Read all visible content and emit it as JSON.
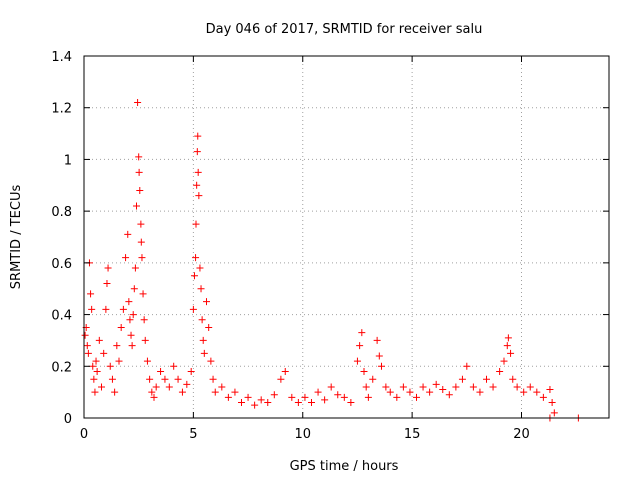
{
  "chart_data": {
    "type": "scatter",
    "title": "Day 046 of 2017, SRMTID for receiver salu",
    "xlabel": "GPS time / hours",
    "ylabel": "SRMTID / TECUs",
    "xlim": [
      0,
      24
    ],
    "ylim": [
      0,
      1.4
    ],
    "x_ticks": [
      0,
      5,
      10,
      15,
      20
    ],
    "x_tick_labels": [
      "0",
      "5",
      "10",
      "15",
      "20"
    ],
    "y_ticks": [
      0,
      0.2,
      0.4,
      0.6,
      0.8,
      1.0,
      1.2,
      1.4
    ],
    "y_tick_labels": [
      "0",
      "0.2",
      "0.4",
      "0.6",
      "0.8",
      "1",
      "1.2",
      "1.4"
    ],
    "grid": true,
    "marker": "+",
    "color": "#ff0000",
    "series": [
      {
        "name": "SRMTID",
        "points": [
          [
            0.05,
            0.32
          ],
          [
            0.1,
            0.35
          ],
          [
            0.15,
            0.28
          ],
          [
            0.2,
            0.25
          ],
          [
            0.25,
            0.6
          ],
          [
            0.3,
            0.48
          ],
          [
            0.35,
            0.42
          ],
          [
            0.4,
            0.2
          ],
          [
            0.45,
            0.15
          ],
          [
            0.5,
            0.1
          ],
          [
            0.55,
            0.22
          ],
          [
            0.6,
            0.18
          ],
          [
            0.7,
            0.3
          ],
          [
            0.8,
            0.12
          ],
          [
            0.9,
            0.25
          ],
          [
            1.0,
            0.42
          ],
          [
            1.05,
            0.52
          ],
          [
            1.1,
            0.58
          ],
          [
            1.2,
            0.2
          ],
          [
            1.3,
            0.15
          ],
          [
            1.4,
            0.1
          ],
          [
            1.5,
            0.28
          ],
          [
            1.6,
            0.22
          ],
          [
            1.7,
            0.35
          ],
          [
            1.8,
            0.42
          ],
          [
            1.9,
            0.62
          ],
          [
            2.0,
            0.71
          ],
          [
            2.05,
            0.45
          ],
          [
            2.1,
            0.38
          ],
          [
            2.15,
            0.32
          ],
          [
            2.2,
            0.28
          ],
          [
            2.25,
            0.4
          ],
          [
            2.3,
            0.5
          ],
          [
            2.35,
            0.58
          ],
          [
            2.4,
            0.82
          ],
          [
            2.45,
            1.22
          ],
          [
            2.5,
            1.01
          ],
          [
            2.52,
            0.95
          ],
          [
            2.55,
            0.88
          ],
          [
            2.6,
            0.75
          ],
          [
            2.62,
            0.68
          ],
          [
            2.65,
            0.62
          ],
          [
            2.7,
            0.48
          ],
          [
            2.75,
            0.38
          ],
          [
            2.8,
            0.3
          ],
          [
            2.9,
            0.22
          ],
          [
            3.0,
            0.15
          ],
          [
            3.1,
            0.1
          ],
          [
            3.2,
            0.08
          ],
          [
            3.3,
            0.12
          ],
          [
            3.5,
            0.18
          ],
          [
            3.7,
            0.15
          ],
          [
            3.9,
            0.12
          ],
          [
            4.1,
            0.2
          ],
          [
            4.3,
            0.15
          ],
          [
            4.5,
            0.1
          ],
          [
            4.7,
            0.13
          ],
          [
            4.9,
            0.18
          ],
          [
            5.0,
            0.42
          ],
          [
            5.05,
            0.55
          ],
          [
            5.1,
            0.62
          ],
          [
            5.12,
            0.75
          ],
          [
            5.15,
            0.9
          ],
          [
            5.18,
            1.03
          ],
          [
            5.2,
            1.09
          ],
          [
            5.22,
            0.95
          ],
          [
            5.25,
            0.86
          ],
          [
            5.3,
            0.58
          ],
          [
            5.35,
            0.5
          ],
          [
            5.4,
            0.38
          ],
          [
            5.45,
            0.3
          ],
          [
            5.5,
            0.25
          ],
          [
            5.6,
            0.45
          ],
          [
            5.7,
            0.35
          ],
          [
            5.8,
            0.22
          ],
          [
            5.9,
            0.15
          ],
          [
            6.0,
            0.1
          ],
          [
            6.3,
            0.12
          ],
          [
            6.6,
            0.08
          ],
          [
            6.9,
            0.1
          ],
          [
            7.2,
            0.06
          ],
          [
            7.5,
            0.08
          ],
          [
            7.8,
            0.05
          ],
          [
            8.1,
            0.07
          ],
          [
            8.4,
            0.06
          ],
          [
            8.7,
            0.09
          ],
          [
            9.0,
            0.15
          ],
          [
            9.2,
            0.18
          ],
          [
            9.5,
            0.08
          ],
          [
            9.8,
            0.06
          ],
          [
            10.1,
            0.08
          ],
          [
            10.4,
            0.06
          ],
          [
            10.7,
            0.1
          ],
          [
            11.0,
            0.07
          ],
          [
            11.3,
            0.12
          ],
          [
            11.6,
            0.09
          ],
          [
            11.9,
            0.08
          ],
          [
            12.2,
            0.06
          ],
          [
            12.5,
            0.22
          ],
          [
            12.6,
            0.28
          ],
          [
            12.7,
            0.33
          ],
          [
            12.8,
            0.18
          ],
          [
            12.9,
            0.12
          ],
          [
            13.0,
            0.08
          ],
          [
            13.2,
            0.15
          ],
          [
            13.4,
            0.3
          ],
          [
            13.5,
            0.24
          ],
          [
            13.6,
            0.2
          ],
          [
            13.8,
            0.12
          ],
          [
            14.0,
            0.1
          ],
          [
            14.3,
            0.08
          ],
          [
            14.6,
            0.12
          ],
          [
            14.9,
            0.1
          ],
          [
            15.2,
            0.08
          ],
          [
            15.5,
            0.12
          ],
          [
            15.8,
            0.1
          ],
          [
            16.1,
            0.13
          ],
          [
            16.4,
            0.11
          ],
          [
            16.7,
            0.09
          ],
          [
            17.0,
            0.12
          ],
          [
            17.3,
            0.15
          ],
          [
            17.5,
            0.2
          ],
          [
            17.8,
            0.12
          ],
          [
            18.1,
            0.1
          ],
          [
            18.4,
            0.15
          ],
          [
            18.7,
            0.12
          ],
          [
            19.0,
            0.18
          ],
          [
            19.2,
            0.22
          ],
          [
            19.35,
            0.28
          ],
          [
            19.4,
            0.31
          ],
          [
            19.5,
            0.25
          ],
          [
            19.6,
            0.15
          ],
          [
            19.8,
            0.12
          ],
          [
            20.1,
            0.1
          ],
          [
            20.4,
            0.12
          ],
          [
            20.7,
            0.1
          ],
          [
            21.0,
            0.08
          ],
          [
            21.3,
            0.11
          ],
          [
            21.4,
            0.06
          ],
          [
            21.5,
            0.02
          ],
          [
            21.3,
            0.0
          ],
          [
            22.6,
            0.0
          ]
        ]
      }
    ]
  }
}
